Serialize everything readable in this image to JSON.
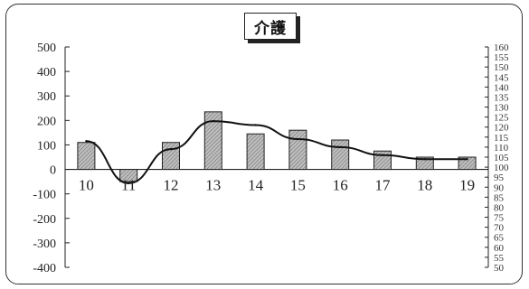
{
  "chart_data": {
    "type": "bar",
    "title": "介護",
    "categories": [
      "10",
      "11",
      "12",
      "13",
      "14",
      "15",
      "16",
      "17",
      "18",
      "19"
    ],
    "series": [
      {
        "type": "bar",
        "axis": "left",
        "values": [
          110,
          -50,
          110,
          235,
          145,
          160,
          120,
          75,
          50,
          50
        ]
      },
      {
        "type": "line",
        "axis": "right",
        "values": [
          113,
          92,
          109,
          123,
          121,
          114,
          110,
          106,
          104,
          104
        ]
      }
    ],
    "ylim_left": [
      -400,
      500
    ],
    "yticks_left": [
      500,
      400,
      300,
      200,
      100,
      0,
      -100,
      -200,
      -300,
      -400
    ],
    "ylim_right": [
      50,
      160
    ],
    "yticks_right": [
      160,
      155,
      150,
      145,
      140,
      135,
      130,
      125,
      120,
      115,
      110,
      105,
      100,
      95,
      90,
      85,
      80,
      75,
      70,
      65,
      60,
      55,
      50
    ],
    "grid": false,
    "colors": {
      "bar_fill": "#a9a9a9",
      "bar_stroke": "#222222",
      "line": "#111111"
    }
  }
}
